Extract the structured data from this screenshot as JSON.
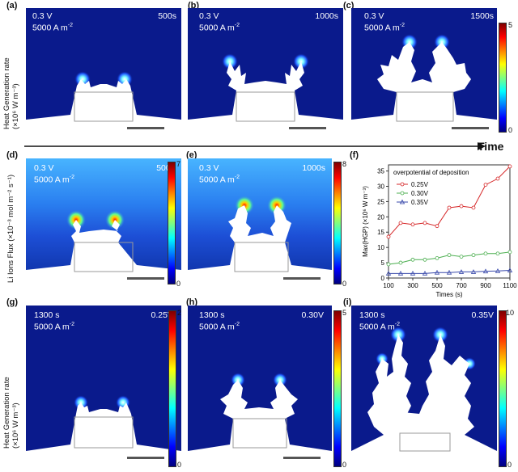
{
  "panels_top": [
    {
      "label": "(a)",
      "voltage": "0.3 V",
      "current": "5000 A m",
      "time": "500s"
    },
    {
      "label": "(b)",
      "voltage": "0.3 V",
      "current": "5000 A m",
      "time": "1000s"
    },
    {
      "label": "(c)",
      "voltage": "0.3 V",
      "current": "5000 A m",
      "time": "1500s"
    }
  ],
  "panels_mid": [
    {
      "label": "(d)",
      "voltage": "0.3 V",
      "current": "5000 A m",
      "time": "500s"
    },
    {
      "label": "(e)",
      "voltage": "0.3 V",
      "current": "5000 A m",
      "time": "1000s"
    }
  ],
  "panels_bot": [
    {
      "label": "(g)",
      "time": "1300 s",
      "current": "5000 A m",
      "voltage": "0.25V"
    },
    {
      "label": "(h)",
      "time": "1300 s",
      "current": "5000 A m",
      "voltage": "0.30V"
    },
    {
      "label": "(i)",
      "time": "1300 s",
      "current": "5000 A m",
      "voltage": "0.35V"
    }
  ],
  "superscript_minus2": "-2",
  "ylabel_top": "Heat Generation rate (×10⁶ W m⁻³)",
  "ylabel_mid": "Li Ions Flux (×10⁻³ mol m⁻² s⁻¹)",
  "ylabel_bot": "Heat Generation rate (×10⁶ W m⁻³)",
  "time_label": "Time",
  "colorbars": {
    "c": {
      "max": "5",
      "min": "0"
    },
    "d": {
      "max": "7",
      "min": "0"
    },
    "e": {
      "max": "8",
      "min": "0"
    },
    "g": {
      "max": "2",
      "min": "0"
    },
    "h": {
      "max": "5",
      "min": "0"
    },
    "i": {
      "max": "10",
      "min": "0"
    }
  },
  "panel_f_label": "(f)",
  "chart_data": {
    "type": "line",
    "title": "overpotential of deposition",
    "xlabel": "Times (s)",
    "ylabel": "Max(HGP) (×10⁶ W m⁻³)",
    "x": [
      100,
      200,
      300,
      400,
      500,
      600,
      700,
      800,
      900,
      1000,
      1100
    ],
    "xticks": [
      "100",
      "300",
      "500",
      "700",
      "900",
      "1100"
    ],
    "yticks": [
      "0",
      "5",
      "10",
      "15",
      "20",
      "25",
      "30",
      "35"
    ],
    "xlim": [
      100,
      1100
    ],
    "ylim": [
      0,
      37
    ],
    "series": [
      {
        "name": "0.25V",
        "color": "#d62728",
        "marker": "circle",
        "values": [
          13.5,
          18,
          17.5,
          18,
          17,
          23,
          23.5,
          23,
          30.5,
          32.5,
          36.5
        ]
      },
      {
        "name": "0.30V",
        "color": "#4caf50",
        "marker": "circle",
        "values": [
          4.5,
          5,
          6,
          6,
          6.5,
          7.5,
          7,
          7.5,
          8,
          8,
          8.5
        ]
      },
      {
        "name": "0.35V",
        "color": "#3949ab",
        "marker": "triangle",
        "values": [
          1.5,
          1.5,
          1.5,
          1.5,
          1.8,
          1.8,
          2,
          2,
          2.2,
          2.3,
          2.5
        ]
      }
    ]
  }
}
